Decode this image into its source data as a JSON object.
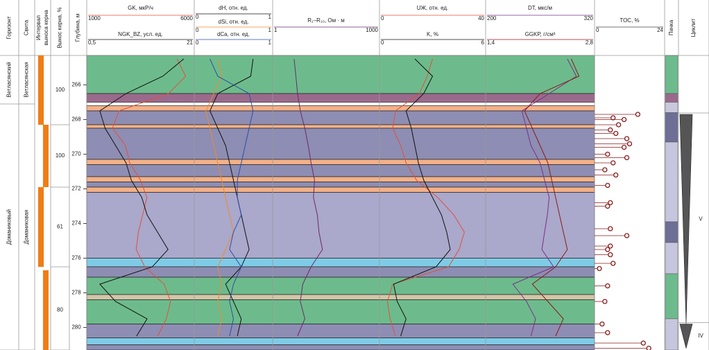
{
  "chart_data": {
    "type": "well_log",
    "ylim": [
      264.3,
      281.3
    ],
    "yticks": [
      266,
      268,
      270,
      272,
      274,
      276,
      278,
      280
    ],
    "depth_title": "Глубина, м",
    "horizon": {
      "title": "Горизонт",
      "units": [
        {
          "name": "Ветласянский",
          "top": 264.3,
          "bottom": 267.1
        },
        {
          "name": "Доманиковый",
          "top": 267.1,
          "bottom": 281.3
        }
      ]
    },
    "suite": {
      "title": "Свита",
      "units": [
        {
          "name": "Ветласянская",
          "top": 264.3,
          "bottom": 267.1
        },
        {
          "name": "Доманиковая",
          "top": 267.1,
          "bottom": 281.3
        }
      ]
    },
    "core_interval_title": [
      "Интервал",
      "выноса керна"
    ],
    "core": {
      "title": "Вынос керна, %",
      "color": "#f07d16",
      "intervals": [
        {
          "top": 264.3,
          "bottom": 268.3,
          "recovery": 100
        },
        {
          "top": 268.3,
          "bottom": 271.9,
          "recovery": 100
        },
        {
          "top": 271.9,
          "bottom": 276.5,
          "recovery": 61
        },
        {
          "top": 276.7,
          "bottom": 281.3,
          "recovery": 80
        }
      ]
    },
    "layers": [
      {
        "top": 264.3,
        "bottom": 266.5,
        "color": "#6dbb8c"
      },
      {
        "top": 266.5,
        "bottom": 267.0,
        "color": "#9a6a8c"
      },
      {
        "top": 267.2,
        "bottom": 267.5,
        "color": "#f3b188"
      },
      {
        "top": 267.5,
        "bottom": 268.3,
        "color": "#8e8db3"
      },
      {
        "top": 268.3,
        "bottom": 268.5,
        "color": "#f3b188"
      },
      {
        "top": 268.5,
        "bottom": 270.3,
        "color": "#8e8db3"
      },
      {
        "top": 270.3,
        "bottom": 270.6,
        "color": "#f3b188"
      },
      {
        "top": 270.6,
        "bottom": 271.3,
        "color": "#8e8db3"
      },
      {
        "top": 271.3,
        "bottom": 271.6,
        "color": "#f3b188"
      },
      {
        "top": 271.6,
        "bottom": 271.9,
        "color": "#8e8db3"
      },
      {
        "top": 271.9,
        "bottom": 272.2,
        "color": "#f3b188"
      },
      {
        "top": 272.2,
        "bottom": 276.0,
        "color": "#aaa8cb"
      },
      {
        "top": 276.0,
        "bottom": 276.5,
        "color": "#7fcbe6"
      },
      {
        "top": 276.5,
        "bottom": 277.1,
        "color": "#8e8db3"
      },
      {
        "top": 277.1,
        "bottom": 278.1,
        "color": "#6dbb8c"
      },
      {
        "top": 278.1,
        "bottom": 278.4,
        "color": "#d2c6a8"
      },
      {
        "top": 278.4,
        "bottom": 279.8,
        "color": "#6dbb8c"
      },
      {
        "top": 279.8,
        "bottom": 280.6,
        "color": "#8e8db3"
      },
      {
        "top": 280.6,
        "bottom": 281.0,
        "color": "#7fcbe6"
      },
      {
        "top": 281.0,
        "bottom": 281.3,
        "color": "#8e8db3"
      }
    ],
    "depth": [
      264.5,
      265.5,
      266.5,
      267.5,
      268.5,
      269.5,
      270.5,
      271.5,
      272.5,
      273.5,
      274.5,
      275.5,
      276.5,
      277.5,
      278.5,
      279.5,
      280.5
    ],
    "tracks": [
      {
        "curves": [
          {
            "name": "GK, мкР/ч",
            "color": "#e2503a",
            "xlim": [
              1000,
              6000
            ],
            "xticks": [
              1000,
              6000
            ],
            "values": [
              5200,
              5600,
              4800,
              2500,
              2200,
              2800,
              3000,
              3500,
              3800,
              3600,
              3400,
              3300,
              3700,
              4600,
              4900,
              4700,
              4300
            ]
          },
          {
            "name": "NGK_BZ, усл. ед.",
            "color": "#111111",
            "xlim": [
              0.5,
              21
            ],
            "xticks": [
              {
                "value": 0.5,
                "label": "0,5"
              },
              21
            ],
            "values": [
              19,
              15,
              8,
              3,
              4,
              6,
              8,
              9,
              11,
              12,
              14,
              16,
              13,
              3,
              6,
              12,
              10
            ]
          }
        ]
      },
      {
        "curves": [
          {
            "name": "dH, отн. ед.",
            "color": "#111111",
            "xlim": [
              0,
              1
            ],
            "xticks": [
              0,
              1
            ],
            "values": [
              0.75,
              0.72,
              0.3,
              0.2,
              0.3,
              0.4,
              0.45,
              0.5,
              0.55,
              0.6,
              0.65,
              0.7,
              0.6,
              0.4,
              0.5,
              0.6,
              0.55
            ]
          },
          {
            "name": "dSi, отн. ед.",
            "color": "#f08a2a",
            "xlim": [
              0,
              1
            ],
            "xticks": [
              0,
              1
            ],
            "values": [
              0.3,
              0.35,
              0.25,
              0.15,
              0.2,
              0.25,
              0.3,
              0.35,
              0.4,
              0.45,
              0.5,
              0.4,
              0.3,
              0.35,
              0.3,
              0.35,
              0.3
            ]
          },
          {
            "name": "dCa, отн. ед.",
            "color": "#2b4fa8",
            "xlim": [
              0,
              1
            ],
            "xticks": [
              0,
              1
            ],
            "values": [
              0.2,
              0.3,
              0.7,
              0.75,
              0.7,
              0.65,
              0.6,
              0.55,
              0.55,
              0.6,
              0.5,
              0.45,
              0.6,
              0.5,
              0.45,
              0.5,
              0.45
            ]
          }
        ]
      },
      {
        "curves": [
          {
            "name": "R₁–R₁₀, Ом · м",
            "color": "#6b2a6b",
            "xlim": [
              1,
              1000
            ],
            "xticks": [
              1,
              1000
            ],
            "log": true,
            "values": [
              4,
              4.5,
              5,
              6,
              8,
              10,
              12,
              15,
              14,
              18,
              20,
              25,
              12,
              7,
              6,
              8,
              5
            ]
          }
        ]
      },
      {
        "curves": [
          {
            "name": "UЖ, отн. ед.",
            "color": "#e2503a",
            "xlim": [
              0,
              40
            ],
            "xticks": [
              0,
              40
            ],
            "values": [
              20,
              18,
              15,
              6,
              5,
              8,
              10,
              14,
              22,
              28,
              32,
              30,
              26,
              5,
              3,
              4,
              6
            ]
          },
          {
            "name": "K, %",
            "color": "#111111",
            "xlim": [
              0,
              6
            ],
            "xticks": [
              0,
              6
            ],
            "values": [
              2,
              3,
              2.5,
              1.5,
              1.8,
              2,
              2.2,
              2.5,
              3,
              3.5,
              3.8,
              4,
              3.2,
              0.8,
              1,
              1.5,
              1.2
            ]
          }
        ]
      },
      {
        "curves": [
          {
            "name": "DT, мкс/м",
            "color": "#7a2f8a",
            "xlim": [
              200,
              320
            ],
            "xticks": [
              200,
              320
            ],
            "values": [
              290,
              300,
              270,
              240,
              245,
              250,
              260,
              265,
              270,
              268,
              265,
              262,
              275,
              230,
              245,
              255,
              250
            ]
          },
          {
            "name": "GGKP, г/см³",
            "color": "#8b1a1a",
            "xlim": [
              1.4,
              2.8
            ],
            "xticks": [
              {
                "value": 1.4,
                "label": "1,4"
              },
              {
                "value": 2.8,
                "label": "2,8"
              }
            ],
            "values": [
              2.5,
              2.6,
              2.1,
              1.9,
              2.0,
              2.1,
              2.2,
              2.25,
              2.3,
              2.35,
              2.4,
              2.45,
              2.3,
              2.0,
              2.2,
              2.4,
              2.3
            ]
          }
        ]
      }
    ],
    "toc": {
      "name": "TOC, %",
      "color": "#8b1a1a",
      "xlim": [
        0,
        24
      ],
      "xticks": [
        0,
        24
      ],
      "depth": [
        267.7,
        267.9,
        268.0,
        268.3,
        268.6,
        268.8,
        269.1,
        269.4,
        269.6,
        270.0,
        270.2,
        270.5,
        270.9,
        271.2,
        271.8,
        272.8,
        273.0,
        274.3,
        274.7,
        275.3,
        275.5,
        275.8,
        276.3,
        276.6,
        277.6,
        278.5,
        279.8,
        280.3,
        280.9,
        281.2
      ],
      "values": [
        15,
        6,
        10,
        8,
        5,
        7,
        11,
        12,
        10,
        4,
        11,
        6,
        3,
        7,
        4,
        5,
        4,
        5,
        11,
        5,
        4,
        5,
        6,
        1,
        4,
        3,
        2,
        4,
        17,
        19
      ]
    },
    "pachka": {
      "title": "Пачка",
      "units": [
        {
          "top": 264.3,
          "bottom": 266.5,
          "color": "#6dbb8c"
        },
        {
          "top": 266.5,
          "bottom": 267.0,
          "color": "#9a6a8c"
        },
        {
          "top": 267.0,
          "bottom": 267.6,
          "color": "#c9c8dc"
        },
        {
          "top": 267.6,
          "bottom": 269.3,
          "color": "#6f6e97"
        },
        {
          "top": 269.3,
          "bottom": 273.9,
          "color": "#c7c6de"
        },
        {
          "top": 273.9,
          "bottom": 275.1,
          "color": "#6f6e97"
        },
        {
          "top": 275.1,
          "bottom": 276.9,
          "color": "#c7c6de"
        },
        {
          "top": 276.9,
          "bottom": 279.5,
          "color": "#6dbb8c"
        },
        {
          "top": 279.5,
          "bottom": 281.3,
          "color": "#c7c6de"
        }
      ]
    },
    "cyclite": {
      "title": "Циклит",
      "units": [
        {
          "label": "V",
          "top": 267.7,
          "bottom": 279.8
        },
        {
          "label": "IV",
          "top": 279.8,
          "bottom": 281.2
        }
      ]
    }
  }
}
